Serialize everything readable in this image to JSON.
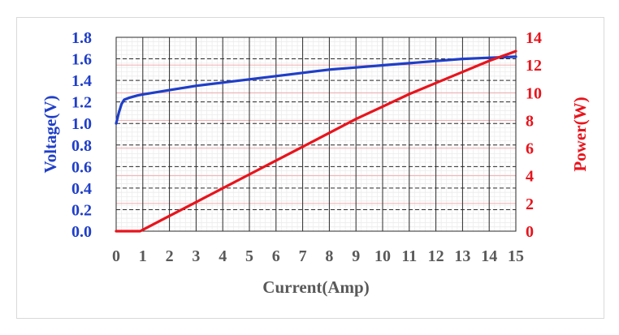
{
  "chart_data": {
    "type": "line",
    "xlabel": "Current(Amp)",
    "ylabel_left": "Voltage(V)",
    "ylabel_right": "Power(W)",
    "xlim": [
      0,
      15
    ],
    "ylim_left": [
      0,
      1.8
    ],
    "ylim_right": [
      0,
      14
    ],
    "x_ticks": [
      "0",
      "1",
      "2",
      "3",
      "4",
      "5",
      "6",
      "7",
      "8",
      "9",
      "10",
      "11",
      "12",
      "13",
      "14",
      "15"
    ],
    "y_ticks_left": [
      "0.0",
      "0.2",
      "0.4",
      "0.6",
      "0.8",
      "1.0",
      "1.2",
      "1.4",
      "1.6",
      "1.8"
    ],
    "y_ticks_right": [
      "0",
      "2",
      "4",
      "6",
      "8",
      "10",
      "12",
      "14"
    ],
    "grid": true,
    "series": [
      {
        "axis": "left",
        "color": "#1f3ec8",
        "x": [
          0,
          0.1,
          0.2,
          0.3,
          0.5,
          0.8,
          1,
          2,
          3,
          4,
          5,
          6,
          7,
          8,
          9,
          10,
          11,
          12,
          13,
          14,
          15
        ],
        "y": [
          1.0,
          1.1,
          1.18,
          1.22,
          1.24,
          1.26,
          1.27,
          1.31,
          1.35,
          1.38,
          1.41,
          1.44,
          1.47,
          1.5,
          1.52,
          1.54,
          1.56,
          1.58,
          1.6,
          1.61,
          1.62
        ]
      },
      {
        "axis": "right",
        "color": "#e8141c",
        "x": [
          0,
          0.9,
          1,
          2,
          3,
          4,
          5,
          6,
          7,
          8,
          9,
          10,
          11,
          12,
          13,
          14,
          15
        ],
        "y": [
          0,
          0,
          0.1,
          1.1,
          2.1,
          3.1,
          4.1,
          5.1,
          6.1,
          7.1,
          8.1,
          9.0,
          9.9,
          10.7,
          11.5,
          12.3,
          13.0
        ]
      }
    ]
  }
}
